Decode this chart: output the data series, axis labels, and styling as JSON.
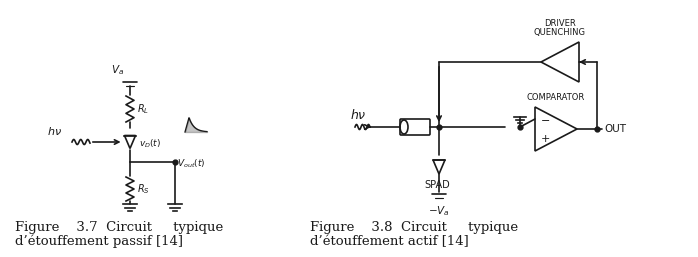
{
  "fig_width": 6.98,
  "fig_height": 2.57,
  "dpi": 100,
  "bg_color": "#ffffff",
  "line_color": "#1a1a1a",
  "caption_left_line1": "Figure    3.7  Circuit     typique",
  "caption_left_line2": "d’étouffement passif [14]",
  "caption_right_line1": "Figure    3.8  Circuit     typique",
  "caption_right_line2": "d’étouffement actif [14]",
  "caption_fontsize": 9.5
}
